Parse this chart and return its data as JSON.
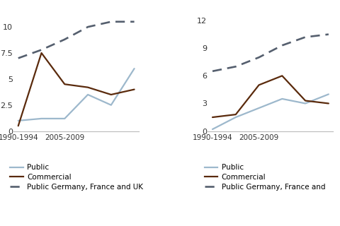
{
  "x": [
    0,
    1,
    2,
    3,
    4,
    5
  ],
  "left": {
    "public": [
      1.0,
      1.2,
      1.2,
      3.5,
      2.5,
      6.0
    ],
    "commercial": [
      0.5,
      7.5,
      4.5,
      4.2,
      3.5,
      4.0
    ],
    "dashed": [
      7.0,
      7.8,
      8.8,
      10.0,
      10.5,
      10.5
    ],
    "ylim": [
      0,
      11.5
    ],
    "yticks": [
      0,
      2.5,
      5.0,
      7.5,
      10.0
    ],
    "ytick_labels": [
      "0",
      "2.5",
      "5",
      "7.5",
      "10"
    ]
  },
  "right": {
    "public": [
      0.2,
      1.5,
      2.5,
      3.5,
      3.0,
      4.0
    ],
    "commercial": [
      1.5,
      1.8,
      5.0,
      6.0,
      3.3,
      3.0
    ],
    "dashed": [
      6.5,
      7.0,
      8.0,
      9.3,
      10.2,
      10.5
    ],
    "ylim": [
      0,
      13
    ],
    "yticks": [
      0,
      3,
      6,
      9,
      12
    ],
    "ytick_labels": [
      "0",
      "3",
      "6",
      "9",
      "12"
    ]
  },
  "colors": {
    "public": "#9db8cc",
    "commercial": "#5a2a0c",
    "dashed": "#555f6e"
  },
  "xtick_positions": [
    0,
    2,
    4
  ],
  "xtick_labels_left": [
    "1990-1994",
    "2005-2009",
    ""
  ],
  "xtick_labels_right": [
    "1990-1994",
    "2005-2009",
    ""
  ],
  "left_legend": [
    "Public",
    "Commercial",
    "Public Germany, France and UK"
  ],
  "right_legend": [
    "Public",
    "Commercial",
    "Public Germany, France and"
  ]
}
